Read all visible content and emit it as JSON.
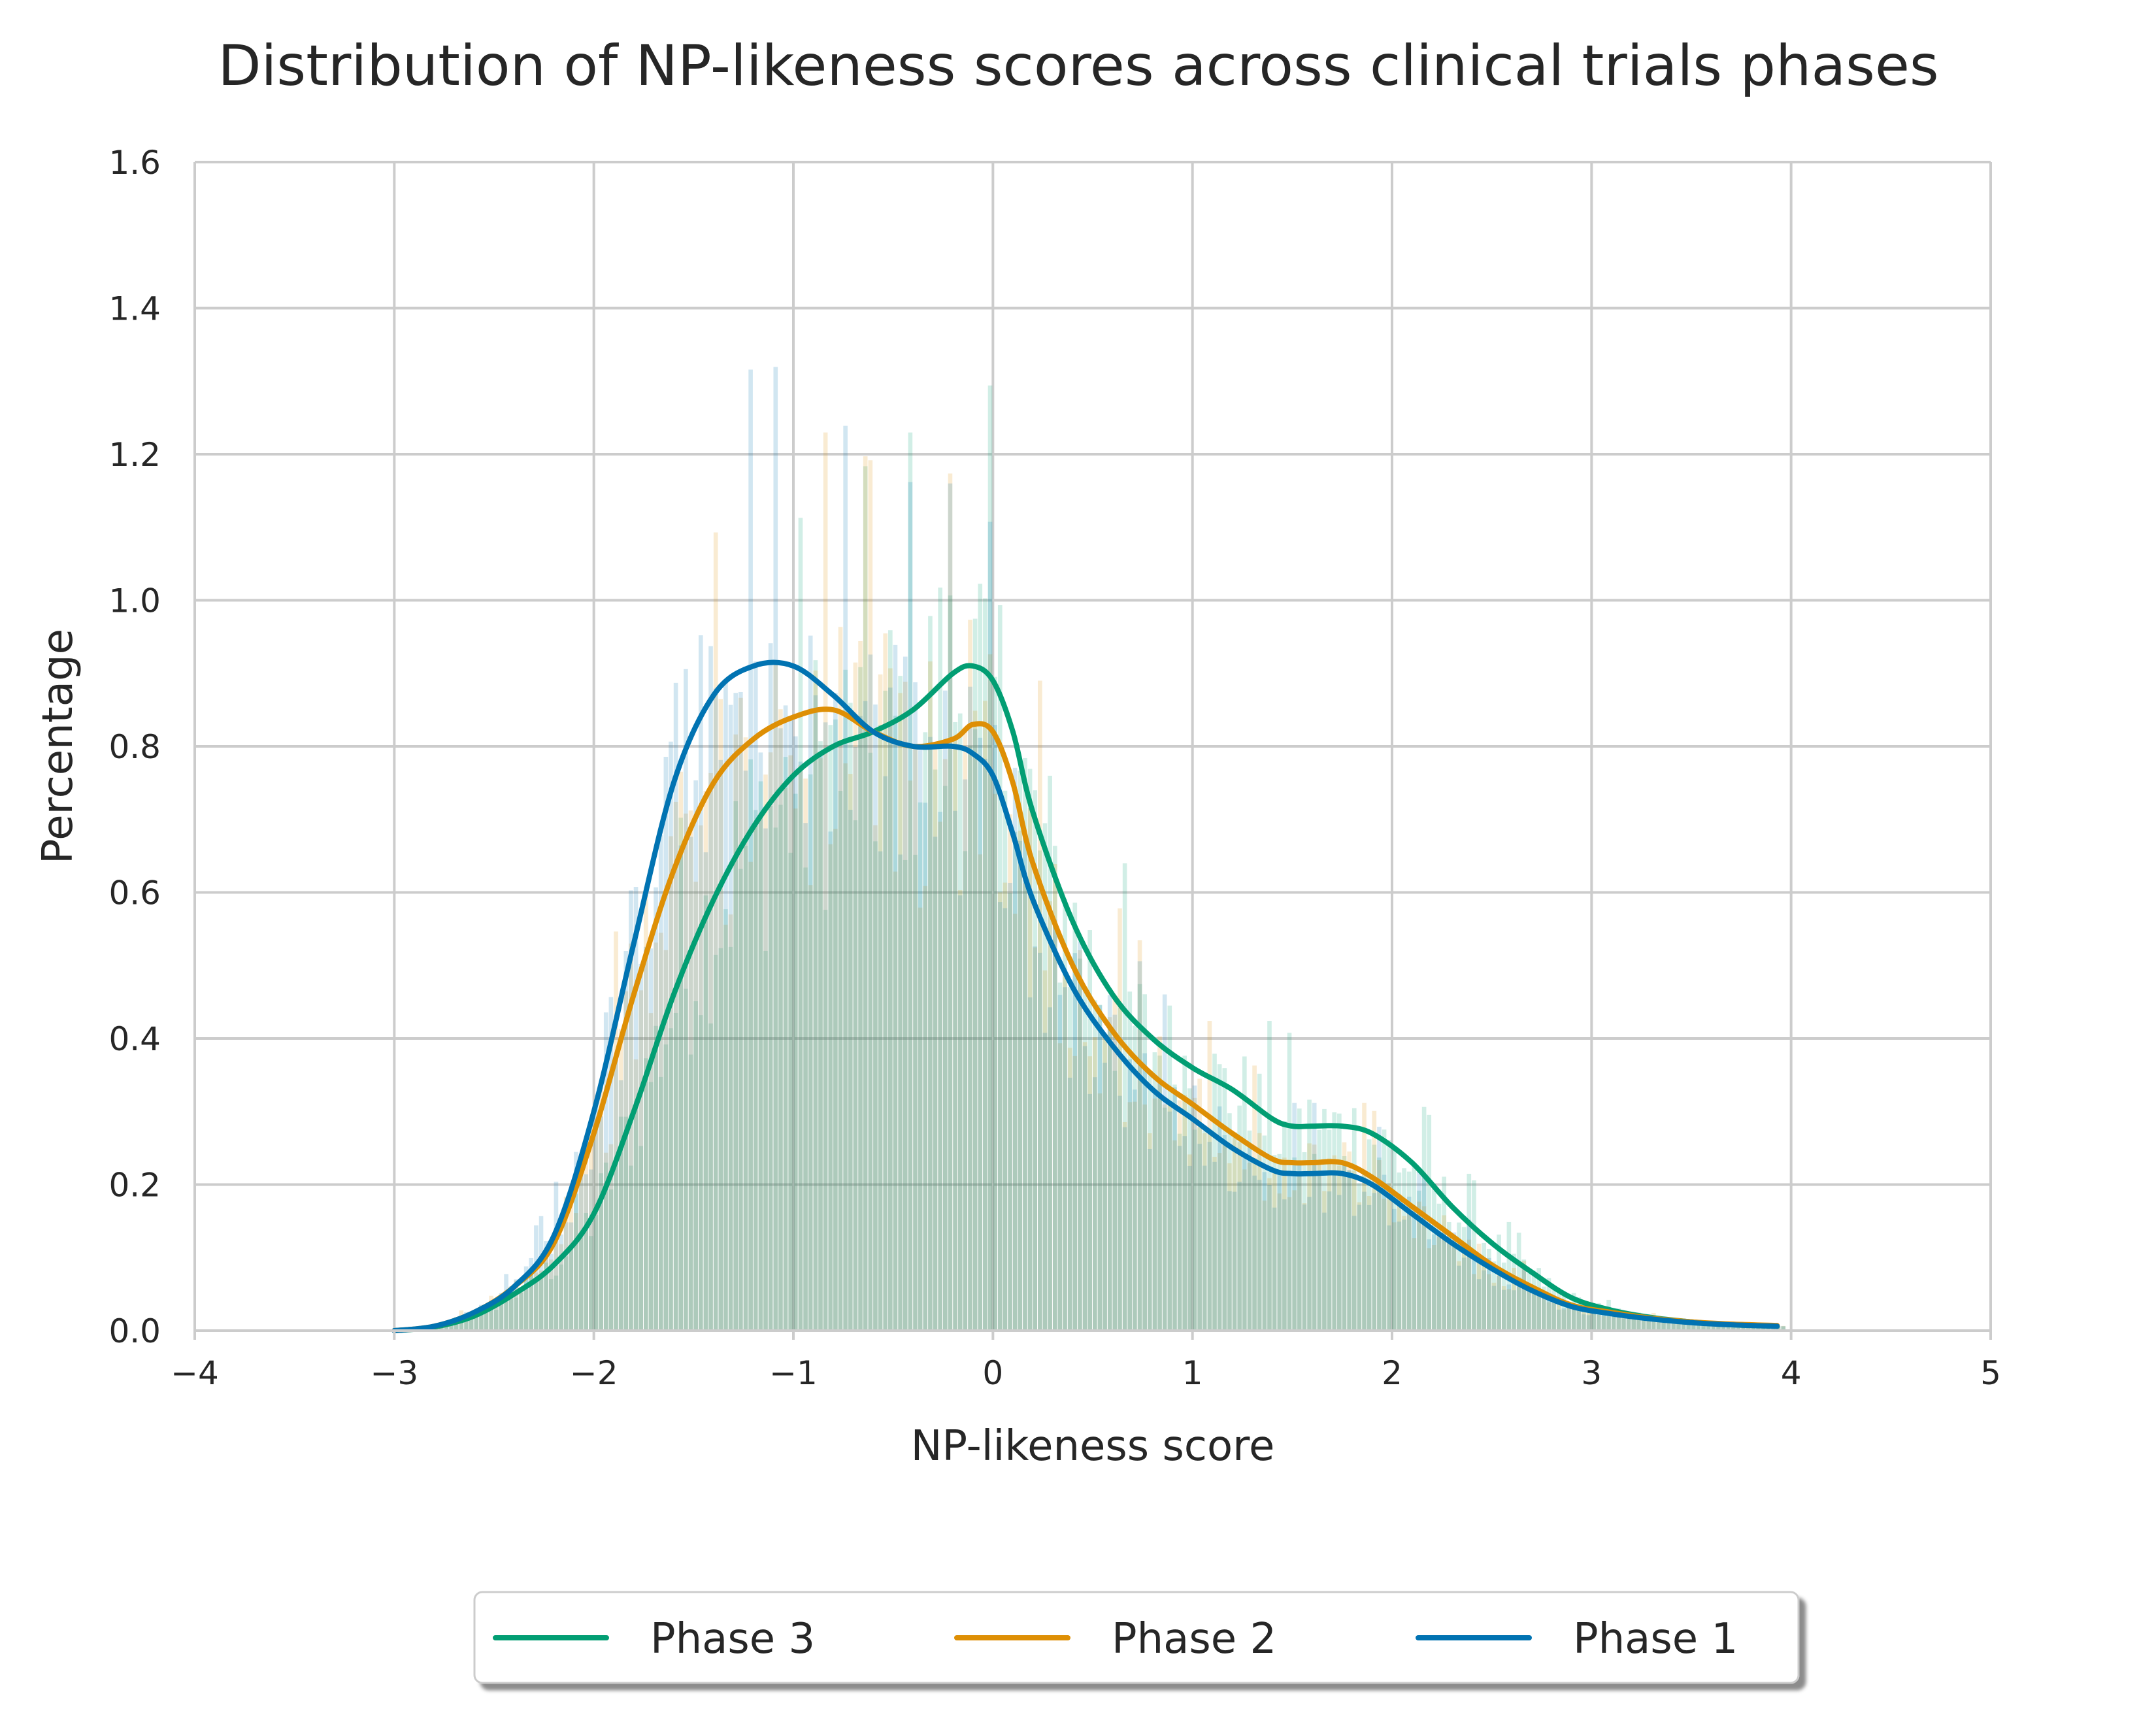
{
  "chart_data": {
    "type": "histogram-kde",
    "title": "Distribution of NP-likeness scores across clinical trials phases",
    "xlabel": "NP-likeness score",
    "ylabel": "Percentage",
    "xlim": [
      -4,
      5
    ],
    "ylim": [
      0,
      1.6
    ],
    "xticks": [
      -4,
      -3,
      -2,
      -1,
      0,
      1,
      2,
      3,
      4,
      5
    ],
    "xtick_labels": [
      "−4",
      "−3",
      "−2",
      "−1",
      "0",
      "1",
      "2",
      "3",
      "4",
      "5"
    ],
    "yticks": [
      0.0,
      0.2,
      0.4,
      0.6,
      0.8,
      1.0,
      1.2,
      1.4,
      1.6
    ],
    "ytick_labels": [
      "0.0",
      "0.2",
      "0.4",
      "0.6",
      "0.8",
      "1.0",
      "1.2",
      "1.4",
      "1.6"
    ],
    "grid": true,
    "legend_position": "bottom-center",
    "hist_bin_range": [
      -3.0,
      3.95
    ],
    "series": [
      {
        "name": "Phase 3",
        "color": "#029E73",
        "kde": {
          "x": [
            -3.0,
            -2.8,
            -2.6,
            -2.4,
            -2.2,
            -2.0,
            -1.8,
            -1.6,
            -1.4,
            -1.2,
            -1.0,
            -0.8,
            -0.6,
            -0.4,
            -0.2,
            -0.1,
            0.0,
            0.1,
            0.2,
            0.4,
            0.6,
            0.8,
            1.0,
            1.2,
            1.4,
            1.5,
            1.6,
            1.75,
            1.9,
            2.1,
            2.3,
            2.5,
            2.7,
            2.9,
            3.1,
            3.3,
            3.5,
            3.7,
            3.93
          ],
          "y": [
            0.0,
            0.005,
            0.02,
            0.05,
            0.09,
            0.16,
            0.3,
            0.46,
            0.59,
            0.69,
            0.76,
            0.8,
            0.82,
            0.85,
            0.9,
            0.91,
            0.89,
            0.82,
            0.71,
            0.56,
            0.46,
            0.4,
            0.36,
            0.33,
            0.29,
            0.28,
            0.28,
            0.28,
            0.27,
            0.23,
            0.17,
            0.12,
            0.08,
            0.045,
            0.028,
            0.018,
            0.012,
            0.008,
            0.006
          ]
        }
      },
      {
        "name": "Phase 2",
        "color": "#DE8F05",
        "kde": {
          "x": [
            -3.0,
            -2.8,
            -2.6,
            -2.4,
            -2.2,
            -2.0,
            -1.8,
            -1.6,
            -1.4,
            -1.2,
            -1.0,
            -0.8,
            -0.6,
            -0.4,
            -0.2,
            -0.1,
            0.0,
            0.1,
            0.2,
            0.4,
            0.6,
            0.8,
            1.0,
            1.2,
            1.4,
            1.5,
            1.6,
            1.75,
            1.9,
            2.1,
            2.3,
            2.5,
            2.7,
            2.9,
            3.1,
            3.3,
            3.5,
            3.7,
            3.93
          ],
          "y": [
            0.0,
            0.006,
            0.025,
            0.06,
            0.12,
            0.27,
            0.46,
            0.63,
            0.75,
            0.81,
            0.84,
            0.85,
            0.82,
            0.8,
            0.81,
            0.83,
            0.82,
            0.75,
            0.64,
            0.5,
            0.41,
            0.35,
            0.31,
            0.27,
            0.235,
            0.23,
            0.23,
            0.23,
            0.21,
            0.17,
            0.13,
            0.09,
            0.06,
            0.035,
            0.025,
            0.017,
            0.012,
            0.009,
            0.007
          ]
        }
      },
      {
        "name": "Phase 1",
        "color": "#0173B2",
        "kde": {
          "x": [
            -3.0,
            -2.8,
            -2.6,
            -2.4,
            -2.2,
            -2.0,
            -1.8,
            -1.6,
            -1.4,
            -1.2,
            -1.0,
            -0.8,
            -0.6,
            -0.4,
            -0.2,
            -0.1,
            0.0,
            0.1,
            0.2,
            0.4,
            0.6,
            0.8,
            1.0,
            1.2,
            1.4,
            1.5,
            1.6,
            1.75,
            1.9,
            2.1,
            2.3,
            2.5,
            2.7,
            2.9,
            3.1,
            3.3,
            3.5,
            3.7,
            3.93
          ],
          "y": [
            0.0,
            0.006,
            0.025,
            0.06,
            0.13,
            0.3,
            0.53,
            0.75,
            0.87,
            0.91,
            0.91,
            0.87,
            0.82,
            0.8,
            0.8,
            0.79,
            0.76,
            0.68,
            0.59,
            0.47,
            0.39,
            0.33,
            0.29,
            0.25,
            0.22,
            0.215,
            0.215,
            0.215,
            0.2,
            0.16,
            0.12,
            0.085,
            0.055,
            0.033,
            0.023,
            0.016,
            0.011,
            0.008,
            0.006
          ]
        }
      }
    ]
  }
}
